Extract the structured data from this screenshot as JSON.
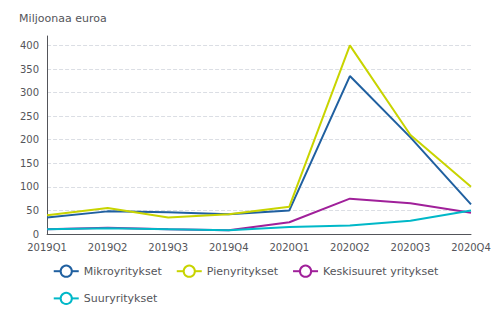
{
  "chart_data": {
    "type": "line",
    "ylabel": "Miljoonaa euroa",
    "categories": [
      "2019Q1",
      "2019Q2",
      "2019Q3",
      "2019Q4",
      "2020Q1",
      "2020Q2",
      "2020Q3",
      "2020Q4"
    ],
    "series": [
      {
        "name": "Mikroyritykset",
        "color": "#2060a0",
        "values": [
          35,
          48,
          46,
          42,
          50,
          335,
          205,
          63
        ]
      },
      {
        "name": "Pienyritykset",
        "color": "#c8d400",
        "values": [
          40,
          55,
          35,
          42,
          58,
          400,
          210,
          100
        ]
      },
      {
        "name": "Keskisuuret yritykset",
        "color": "#a0209a",
        "values": [
          10,
          13,
          10,
          8,
          25,
          75,
          65,
          45
        ]
      },
      {
        "name": "Suuryritykset",
        "color": "#00b8c8",
        "values": [
          10,
          12,
          10,
          8,
          15,
          18,
          28,
          50
        ]
      }
    ],
    "ylim": [
      0,
      420
    ],
    "yticks": [
      0,
      50,
      100,
      150,
      200,
      250,
      300,
      350,
      400
    ],
    "grid": true,
    "legend": "bottom"
  }
}
